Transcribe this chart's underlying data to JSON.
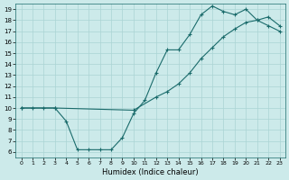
{
  "xlabel": "Humidex (Indice chaleur)",
  "bg_color": "#cceaea",
  "line_color": "#1a6b6b",
  "grid_color": "#aad4d4",
  "xlim": [
    -0.5,
    23.5
  ],
  "ylim": [
    5.5,
    19.5
  ],
  "xticks": [
    0,
    1,
    2,
    3,
    4,
    5,
    6,
    7,
    8,
    9,
    10,
    11,
    12,
    13,
    14,
    15,
    16,
    17,
    18,
    19,
    20,
    21,
    22,
    23
  ],
  "yticks": [
    6,
    7,
    8,
    9,
    10,
    11,
    12,
    13,
    14,
    15,
    16,
    17,
    18,
    19
  ],
  "curve1_x": [
    0,
    1,
    2,
    3,
    4,
    5,
    6,
    7,
    8,
    9,
    10,
    11,
    12,
    13,
    14,
    15,
    16,
    17,
    18,
    19,
    20,
    21,
    22,
    23
  ],
  "curve1_y": [
    10,
    10,
    10,
    10,
    8.8,
    6.2,
    6.2,
    6.2,
    6.2,
    7.3,
    9.5,
    10.7,
    13.2,
    15.3,
    15.3,
    16.7,
    18.5,
    19.3,
    18.8,
    18.5,
    19.0,
    18.0,
    18.3,
    17.5
  ],
  "curve2_x": [
    0,
    3,
    10,
    12,
    13,
    14,
    15,
    16,
    17,
    18,
    19,
    20,
    21,
    22,
    23
  ],
  "curve2_y": [
    10,
    10,
    9.8,
    11.0,
    11.5,
    12.2,
    13.2,
    14.5,
    15.5,
    16.5,
    17.2,
    17.8,
    18.0,
    17.5,
    17.0
  ]
}
